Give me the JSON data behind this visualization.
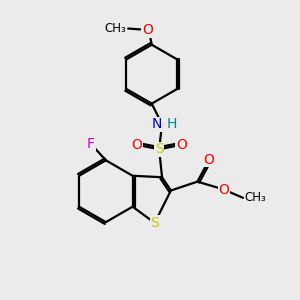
{
  "bg_color": "#ebebeb",
  "bond_color": "#000000",
  "bond_width": 1.6,
  "dbo": 0.07,
  "atom_colors": {
    "S": "#cccc00",
    "O": "#ff0000",
    "N": "#0000cc",
    "H": "#008888",
    "F": "#cc00cc",
    "C": "#000000"
  },
  "fs": 10
}
